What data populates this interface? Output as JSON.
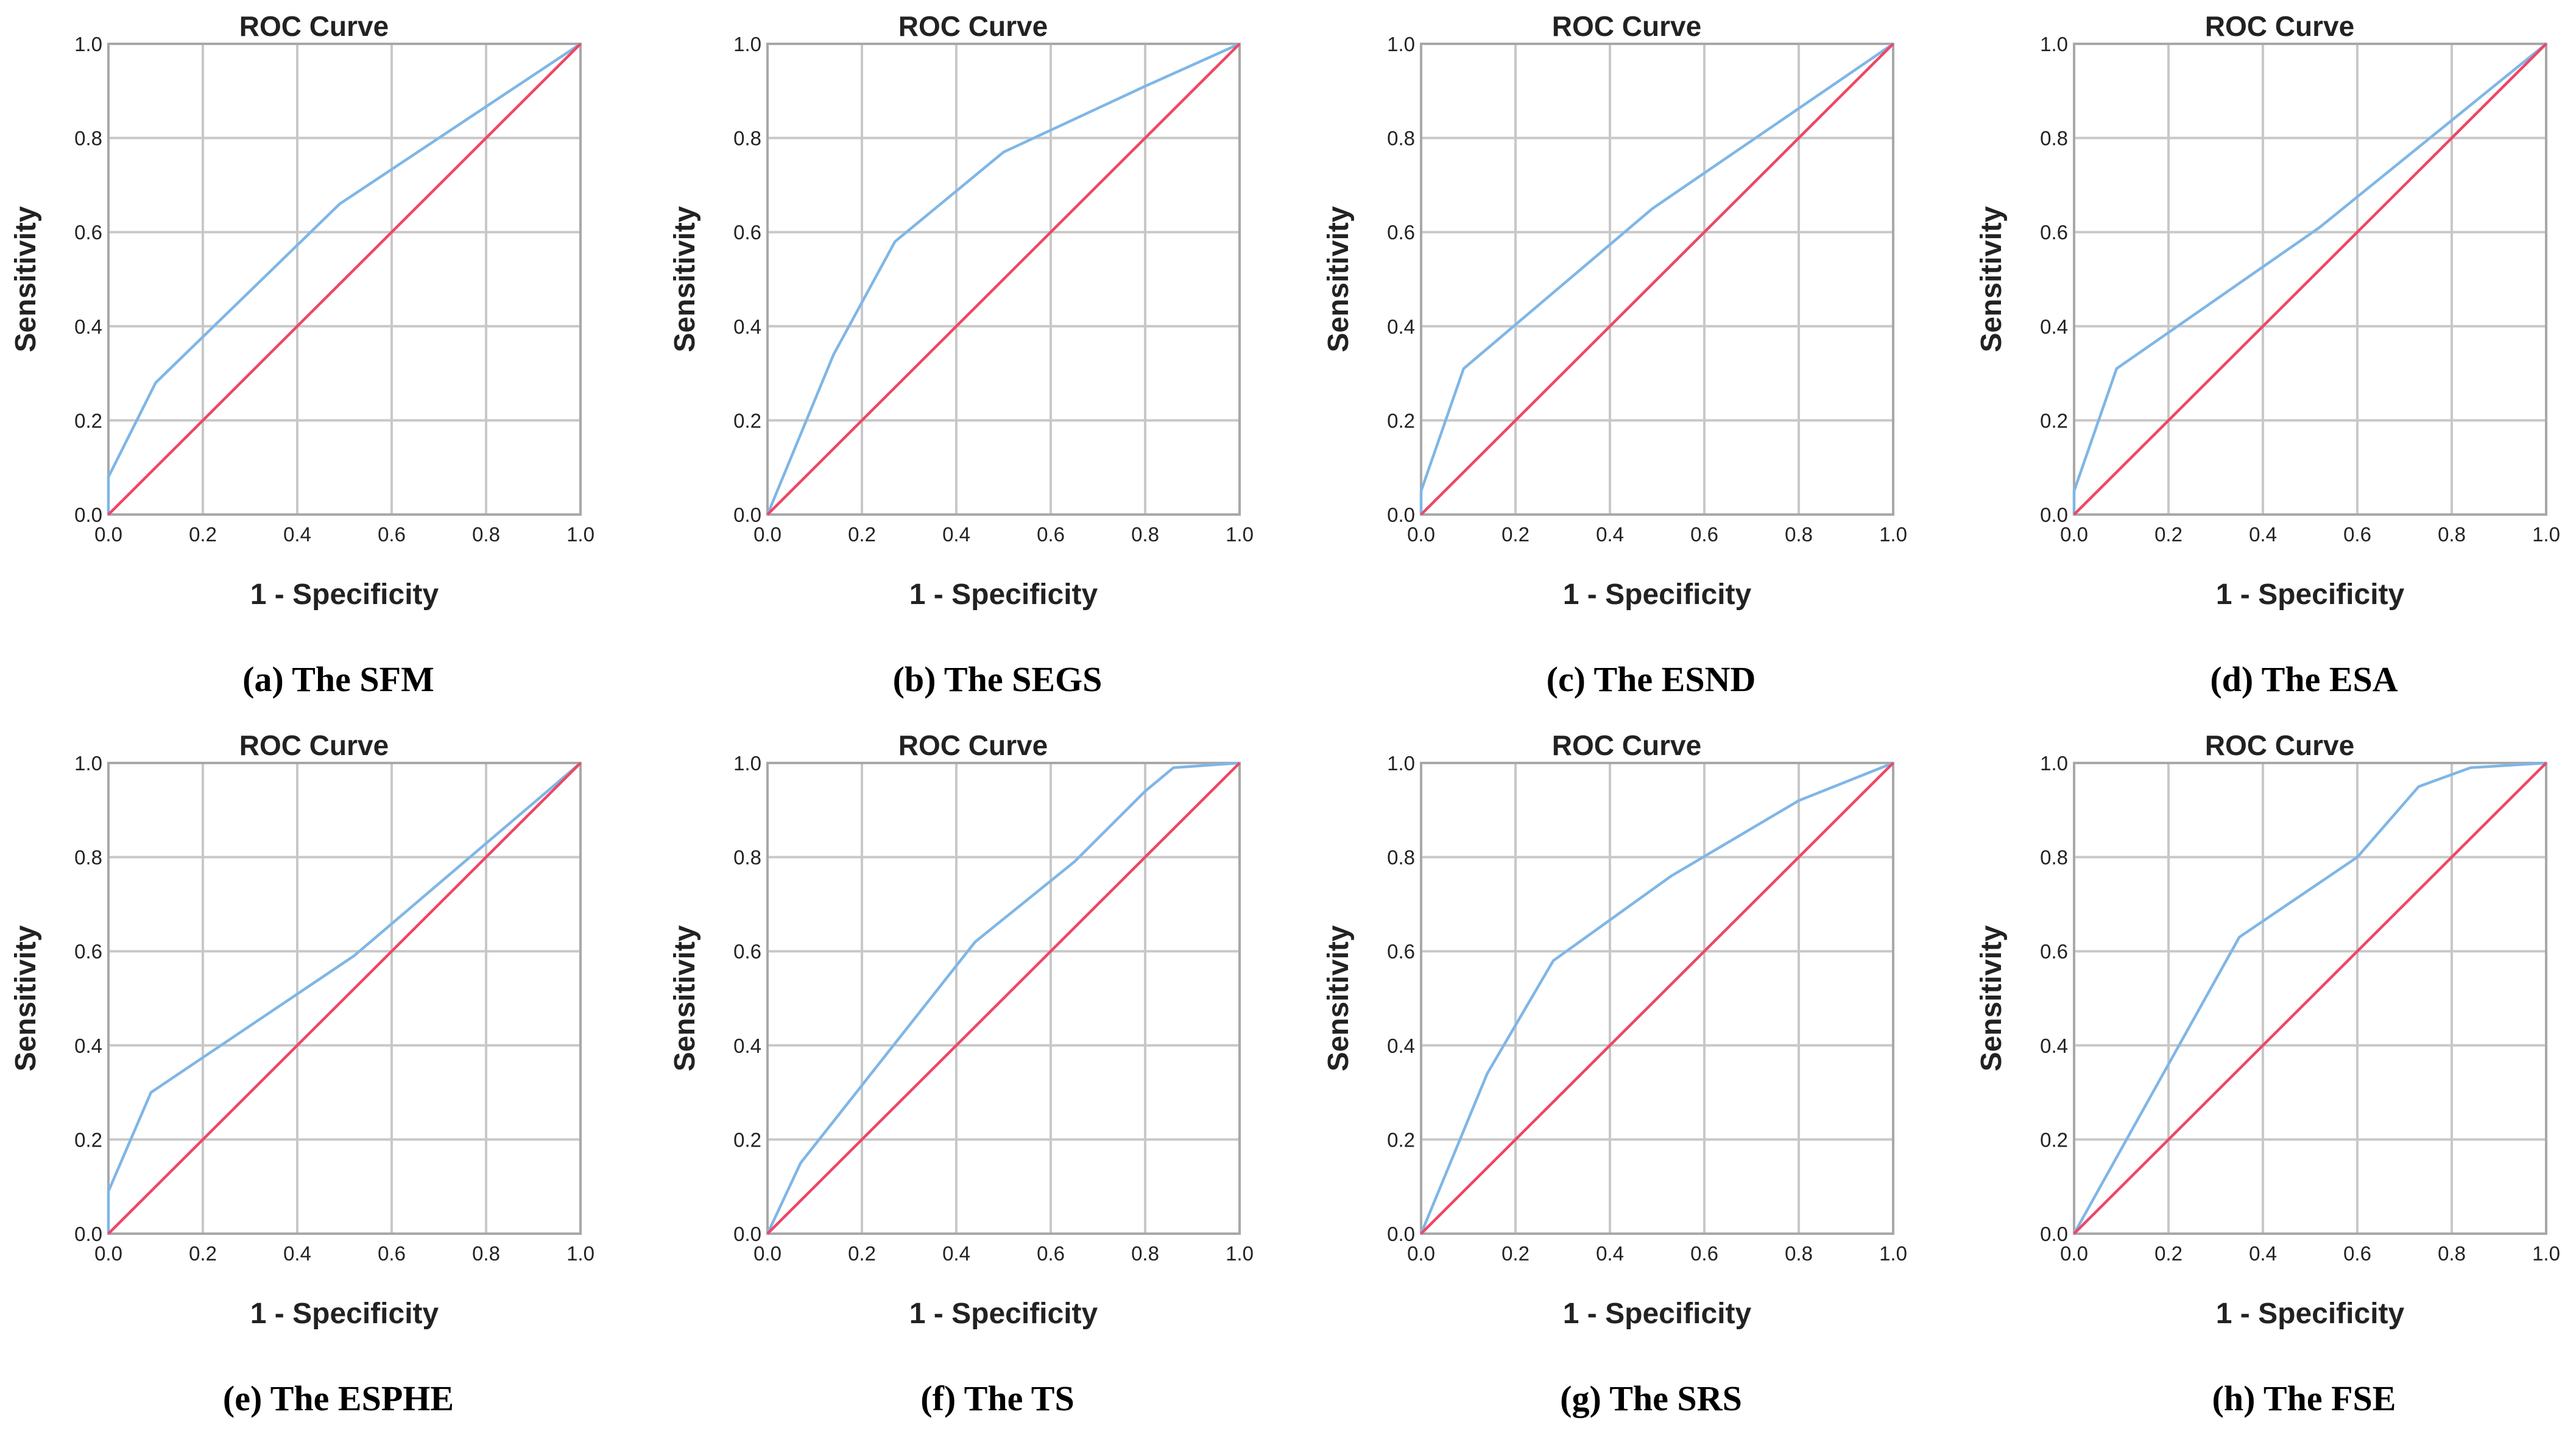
{
  "colors": {
    "roc": "#7fb6e6",
    "reference": "#ee4766",
    "grid": "#c8c8c8",
    "frame": "#a8a8a8"
  },
  "chart_data": [
    {
      "type": "line",
      "panel": "a",
      "caption": "(a) The SFM",
      "title": "ROC Curve",
      "xlabel": "1 - Specificity",
      "ylabel": "Sensitivity",
      "xlim": [
        0,
        1
      ],
      "ylim": [
        0,
        1
      ],
      "ticks": [
        "0.0",
        "0.2",
        "0.4",
        "0.6",
        "0.8",
        "1.0"
      ],
      "grid": true,
      "series": [
        {
          "name": "ROC",
          "x": [
            0,
            0,
            0.1,
            0.49,
            1
          ],
          "y": [
            0,
            0.08,
            0.28,
            0.66,
            1
          ]
        },
        {
          "name": "Reference Line",
          "x": [
            0,
            1
          ],
          "y": [
            0,
            1
          ]
        }
      ]
    },
    {
      "type": "line",
      "panel": "b",
      "caption": "(b) The SEGS",
      "title": "ROC Curve",
      "xlabel": "1 - Specificity",
      "ylabel": "Sensitivity",
      "xlim": [
        0,
        1
      ],
      "ylim": [
        0,
        1
      ],
      "ticks": [
        "0.0",
        "0.2",
        "0.4",
        "0.6",
        "0.8",
        "1.0"
      ],
      "grid": true,
      "series": [
        {
          "name": "ROC",
          "x": [
            0,
            0.14,
            0.27,
            0.5,
            0.8,
            1
          ],
          "y": [
            0,
            0.34,
            0.58,
            0.77,
            0.91,
            1
          ]
        },
        {
          "name": "Reference Line",
          "x": [
            0,
            1
          ],
          "y": [
            0,
            1
          ]
        }
      ]
    },
    {
      "type": "line",
      "panel": "c",
      "caption": "(c) The ESND",
      "title": "ROC Curve",
      "xlabel": "1 - Specificity",
      "ylabel": "Sensitivity",
      "xlim": [
        0,
        1
      ],
      "ylim": [
        0,
        1
      ],
      "ticks": [
        "0.0",
        "0.2",
        "0.4",
        "0.6",
        "0.8",
        "1.0"
      ],
      "grid": true,
      "series": [
        {
          "name": "ROC",
          "x": [
            0,
            0,
            0.09,
            0.49,
            1
          ],
          "y": [
            0,
            0.05,
            0.31,
            0.65,
            1
          ]
        },
        {
          "name": "Reference Line",
          "x": [
            0,
            1
          ],
          "y": [
            0,
            1
          ]
        }
      ]
    },
    {
      "type": "line",
      "panel": "d",
      "caption": "(d) The ESA",
      "title": "ROC Curve",
      "xlabel": "1 - Specificity",
      "ylabel": "Sensitivity",
      "xlim": [
        0,
        1
      ],
      "ylim": [
        0,
        1
      ],
      "ticks": [
        "0.0",
        "0.2",
        "0.4",
        "0.6",
        "0.8",
        "1.0"
      ],
      "grid": true,
      "series": [
        {
          "name": "ROC",
          "x": [
            0,
            0,
            0.09,
            0.52,
            1
          ],
          "y": [
            0,
            0.05,
            0.31,
            0.61,
            1
          ]
        },
        {
          "name": "Reference Line",
          "x": [
            0,
            1
          ],
          "y": [
            0,
            1
          ]
        }
      ]
    },
    {
      "type": "line",
      "panel": "e",
      "caption": "(e) The ESPHE",
      "title": "ROC Curve",
      "xlabel": "1 - Specificity",
      "ylabel": "Sensitivity",
      "xlim": [
        0,
        1
      ],
      "ylim": [
        0,
        1
      ],
      "ticks": [
        "0.0",
        "0.2",
        "0.4",
        "0.6",
        "0.8",
        "1.0"
      ],
      "grid": true,
      "series": [
        {
          "name": "ROC",
          "x": [
            0,
            0,
            0.09,
            0.52,
            1
          ],
          "y": [
            0,
            0.09,
            0.3,
            0.59,
            1
          ]
        },
        {
          "name": "Reference Line",
          "x": [
            0,
            1
          ],
          "y": [
            0,
            1
          ]
        }
      ]
    },
    {
      "type": "line",
      "panel": "f",
      "caption": "(f) The TS",
      "title": "ROC Curve",
      "xlabel": "1 - Specificity",
      "ylabel": "Sensitivity",
      "xlim": [
        0,
        1
      ],
      "ylim": [
        0,
        1
      ],
      "ticks": [
        "0.0",
        "0.2",
        "0.4",
        "0.6",
        "0.8",
        "1.0"
      ],
      "grid": true,
      "series": [
        {
          "name": "ROC",
          "x": [
            0,
            0.07,
            0.44,
            0.65,
            0.8,
            0.86,
            1
          ],
          "y": [
            0,
            0.15,
            0.62,
            0.79,
            0.94,
            0.99,
            1
          ]
        },
        {
          "name": "Reference Line",
          "x": [
            0,
            1
          ],
          "y": [
            0,
            1
          ]
        }
      ]
    },
    {
      "type": "line",
      "panel": "g",
      "caption": "(g) The SRS",
      "title": "ROC Curve",
      "xlabel": "1 - Specificity",
      "ylabel": "Sensitivity",
      "xlim": [
        0,
        1
      ],
      "ylim": [
        0,
        1
      ],
      "ticks": [
        "0.0",
        "0.2",
        "0.4",
        "0.6",
        "0.8",
        "1.0"
      ],
      "grid": true,
      "series": [
        {
          "name": "ROC",
          "x": [
            0,
            0.14,
            0.28,
            0.53,
            0.8,
            1
          ],
          "y": [
            0,
            0.34,
            0.58,
            0.76,
            0.92,
            1
          ]
        },
        {
          "name": "Reference Line",
          "x": [
            0,
            1
          ],
          "y": [
            0,
            1
          ]
        }
      ]
    },
    {
      "type": "line",
      "panel": "h",
      "caption": "(h) The FSE",
      "title": "ROC Curve",
      "xlabel": "1 - Specificity",
      "ylabel": "Sensitivity",
      "xlim": [
        0,
        1
      ],
      "ylim": [
        0,
        1
      ],
      "ticks": [
        "0.0",
        "0.2",
        "0.4",
        "0.6",
        "0.8",
        "1.0"
      ],
      "grid": true,
      "series": [
        {
          "name": "ROC",
          "x": [
            0,
            0.35,
            0.6,
            0.73,
            0.84,
            1
          ],
          "y": [
            0,
            0.63,
            0.8,
            0.95,
            0.99,
            1
          ]
        },
        {
          "name": "Reference Line",
          "x": [
            0,
            1
          ],
          "y": [
            0,
            1
          ]
        }
      ]
    }
  ]
}
